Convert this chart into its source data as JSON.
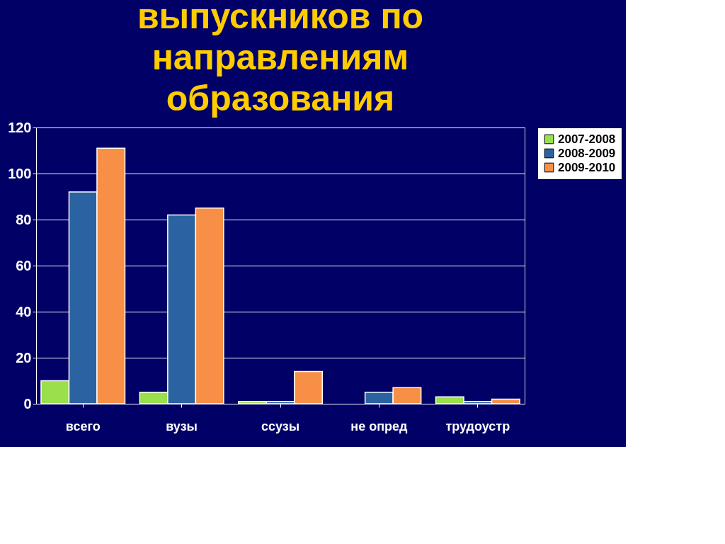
{
  "chart_data": {
    "type": "bar",
    "title": [
      "выпускников по",
      "направлениям",
      "образования"
    ],
    "categories": [
      "всего",
      "вузы",
      "ссузы",
      "не опред",
      "трудоустр"
    ],
    "series": [
      {
        "name": "2007-2008",
        "color": "#99e04c",
        "values": [
          10,
          5,
          1,
          0,
          3
        ]
      },
      {
        "name": "2008-2009",
        "color": "#2a62a2",
        "values": [
          92,
          82,
          1,
          5,
          1
        ]
      },
      {
        "name": "2009-2010",
        "color": "#f79046",
        "values": [
          111,
          85,
          14,
          7,
          2
        ]
      }
    ],
    "ylim": [
      0,
      120
    ],
    "yticks": [
      0,
      20,
      40,
      60,
      80,
      100,
      120
    ],
    "grid": "y",
    "legend": "right"
  }
}
